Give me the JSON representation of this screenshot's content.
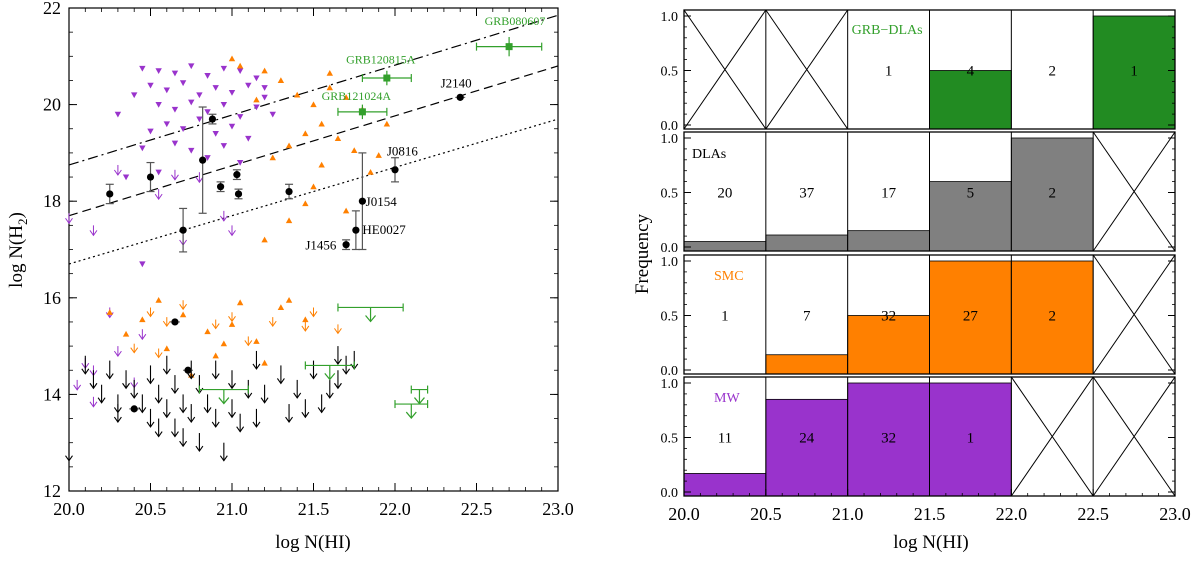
{
  "chart_data": [
    {
      "type": "scatter",
      "xlabel": "log N(HI)",
      "ylabel_main": "log N(H",
      "ylabel_sub": "2",
      "ylabel_close": ")",
      "xlim": [
        20.0,
        23.0
      ],
      "ylim": [
        12,
        22
      ],
      "xticks": [
        "20.0",
        "20.5",
        "21.0",
        "21.5",
        "22.0",
        "22.5",
        "23.0"
      ],
      "xtick_values": [
        20.0,
        20.5,
        21.0,
        21.5,
        22.0,
        22.5,
        23.0
      ],
      "yticks": [
        "12",
        "14",
        "16",
        "18",
        "20",
        "22"
      ],
      "ytick_values": [
        12,
        14,
        16,
        18,
        20,
        22
      ],
      "colors": {
        "mw": "#9933cc",
        "smc": "#ff8000",
        "grb": "#33a02c",
        "qso": "#000000"
      },
      "guide_lines": [
        {
          "name": "dash-dot",
          "style": "dashdot",
          "x": [
            20.0,
            23.0
          ],
          "y": [
            18.75,
            21.85
          ]
        },
        {
          "name": "dashed",
          "style": "dashed",
          "x": [
            20.0,
            23.0
          ],
          "y": [
            17.7,
            20.8
          ]
        },
        {
          "name": "dotted",
          "style": "dotted",
          "x": [
            20.0,
            23.0
          ],
          "y": [
            16.7,
            19.7
          ]
        }
      ],
      "mw_detections": [
        [
          20.45,
          20.75
        ],
        [
          20.55,
          20.7
        ],
        [
          20.65,
          20.65
        ],
        [
          20.75,
          20.8
        ],
        [
          20.85,
          20.6
        ],
        [
          20.95,
          20.75
        ],
        [
          21.05,
          20.7
        ],
        [
          21.15,
          20.55
        ],
        [
          20.5,
          20.4
        ],
        [
          20.6,
          20.3
        ],
        [
          20.7,
          20.45
        ],
        [
          20.8,
          20.2
        ],
        [
          20.9,
          20.35
        ],
        [
          21.0,
          20.25
        ],
        [
          21.1,
          20.4
        ],
        [
          21.2,
          20.15
        ],
        [
          20.55,
          20.0
        ],
        [
          20.65,
          19.9
        ],
        [
          20.75,
          20.05
        ],
        [
          20.85,
          19.85
        ],
        [
          20.95,
          20.0
        ],
        [
          21.05,
          19.75
        ],
        [
          21.15,
          19.95
        ],
        [
          21.25,
          19.8
        ],
        [
          20.6,
          19.6
        ],
        [
          20.7,
          19.5
        ],
        [
          20.8,
          19.7
        ],
        [
          20.9,
          19.4
        ],
        [
          21.0,
          19.55
        ],
        [
          21.1,
          19.3
        ],
        [
          20.65,
          19.2
        ],
        [
          20.75,
          19.05
        ],
        [
          20.85,
          18.9
        ],
        [
          20.95,
          19.15
        ],
        [
          21.05,
          18.8
        ],
        [
          20.55,
          18.6
        ],
        [
          20.5,
          19.45
        ],
        [
          20.4,
          20.2
        ],
        [
          21.2,
          20.35
        ],
        [
          20.3,
          19.8
        ],
        [
          20.45,
          19.1
        ],
        [
          20.35,
          18.5
        ],
        [
          20.45,
          16.7
        ]
      ],
      "mw_upper_limits": [
        [
          20.0,
          17.75
        ],
        [
          20.15,
          17.5
        ],
        [
          20.3,
          18.75
        ],
        [
          20.65,
          18.65
        ],
        [
          20.7,
          17.3
        ],
        [
          20.8,
          18.6
        ],
        [
          20.95,
          17.8
        ],
        [
          21.0,
          17.5
        ],
        [
          20.55,
          18.25
        ],
        [
          20.1,
          14.75
        ],
        [
          20.45,
          15.35
        ],
        [
          20.25,
          15.8
        ],
        [
          20.4,
          14.35
        ],
        [
          20.15,
          14.6
        ],
        [
          20.3,
          15.0
        ],
        [
          20.15,
          13.95
        ],
        [
          20.05,
          14.3
        ]
      ],
      "smc_detections": [
        [
          21.2,
          20.7
        ],
        [
          21.3,
          20.5
        ],
        [
          21.4,
          20.2
        ],
        [
          21.5,
          20.0
        ],
        [
          21.6,
          20.35
        ],
        [
          21.7,
          20.15
        ],
        [
          21.8,
          19.9
        ],
        [
          21.55,
          19.6
        ],
        [
          21.45,
          19.4
        ],
        [
          21.65,
          19.3
        ],
        [
          21.35,
          19.15
        ],
        [
          21.75,
          19.05
        ],
        [
          21.25,
          18.9
        ],
        [
          21.55,
          18.75
        ],
        [
          21.85,
          18.6
        ],
        [
          21.5,
          18.3
        ],
        [
          21.45,
          17.95
        ],
        [
          21.7,
          17.8
        ],
        [
          21.35,
          17.6
        ],
        [
          21.2,
          17.2
        ],
        [
          21.15,
          20.1
        ],
        [
          21.05,
          20.8
        ],
        [
          21.0,
          20.95
        ],
        [
          21.9,
          18.95
        ],
        [
          21.95,
          19.6
        ],
        [
          21.6,
          20.65
        ],
        [
          20.25,
          15.7
        ],
        [
          20.45,
          15.55
        ],
        [
          20.55,
          15.95
        ],
        [
          20.7,
          15.65
        ],
        [
          20.85,
          15.3
        ],
        [
          21.0,
          15.45
        ],
        [
          21.15,
          15.1
        ],
        [
          21.3,
          15.8
        ],
        [
          21.45,
          15.55
        ],
        [
          20.6,
          14.95
        ],
        [
          20.9,
          14.8
        ],
        [
          21.2,
          14.65
        ],
        [
          20.75,
          14.4
        ],
        [
          21.35,
          15.95
        ],
        [
          20.35,
          15.25
        ],
        [
          21.05,
          15.9
        ],
        [
          20.95,
          15.05
        ]
      ],
      "smc_upper_limits": [
        [
          20.6,
          15.6
        ],
        [
          20.7,
          15.95
        ],
        [
          21.0,
          15.7
        ],
        [
          21.25,
          15.6
        ],
        [
          21.45,
          15.5
        ],
        [
          21.5,
          15.8
        ],
        [
          21.65,
          15.45
        ],
        [
          20.9,
          15.55
        ],
        [
          20.55,
          14.95
        ],
        [
          21.1,
          15.2
        ],
        [
          20.4,
          15.05
        ],
        [
          20.5,
          15.8
        ]
      ],
      "qso_detections": [
        {
          "x": 20.25,
          "y": 18.15,
          "yerr": 0.2
        },
        {
          "x": 20.5,
          "y": 18.5,
          "yerr": 0.3
        },
        {
          "x": 20.7,
          "y": 17.4,
          "yerr": 0.45
        },
        {
          "x": 20.82,
          "y": 18.85,
          "yerr": 1.1
        },
        {
          "x": 20.88,
          "y": 19.7,
          "yerr": 0.1
        },
        {
          "x": 20.93,
          "y": 18.3,
          "yerr": 0.1
        },
        {
          "x": 21.03,
          "y": 18.55,
          "yerr": 0.1
        },
        {
          "x": 21.04,
          "y": 18.15,
          "yerr": 0.1
        },
        {
          "x": 21.35,
          "y": 18.2,
          "yerr": 0.15
        },
        {
          "x": 21.7,
          "y": 17.1,
          "yerr": 0.1
        },
        {
          "x": 21.76,
          "y": 17.4,
          "yerr": 0.4
        },
        {
          "x": 21.8,
          "y": 18.0,
          "yerr": 1.0
        },
        {
          "x": 22.0,
          "y": 18.65,
          "yerr": 0.25
        },
        {
          "x": 22.4,
          "y": 20.15,
          "yerr": 0.05
        },
        {
          "x": 20.4,
          "y": 13.7,
          "yerr": 0.05
        },
        {
          "x": 20.65,
          "y": 15.5,
          "yerr": 0.05
        },
        {
          "x": 20.73,
          "y": 14.5,
          "yerr": 0.05
        }
      ],
      "qso_labels": [
        {
          "text": "J2140",
          "x": 22.28,
          "y": 20.35
        },
        {
          "text": "J0816",
          "x": 21.95,
          "y": 18.95
        },
        {
          "text": "J0154",
          "x": 21.82,
          "y": 17.9
        },
        {
          "text": "HE0027",
          "x": 21.8,
          "y": 17.32
        },
        {
          "text": "J1456",
          "x": 21.45,
          "y": 17.0
        }
      ],
      "qso_upper_limits": [
        [
          20.0,
          13.0
        ],
        [
          20.1,
          14.8
        ],
        [
          20.15,
          14.5
        ],
        [
          20.2,
          14.2
        ],
        [
          20.25,
          14.7
        ],
        [
          20.3,
          14.0
        ],
        [
          20.3,
          13.8
        ],
        [
          20.35,
          14.5
        ],
        [
          20.4,
          14.3
        ],
        [
          20.45,
          14.0
        ],
        [
          20.5,
          13.7
        ],
        [
          20.5,
          14.6
        ],
        [
          20.55,
          14.2
        ],
        [
          20.55,
          13.5
        ],
        [
          20.6,
          14.8
        ],
        [
          20.6,
          13.9
        ],
        [
          20.65,
          14.4
        ],
        [
          20.65,
          13.5
        ],
        [
          20.7,
          14.0
        ],
        [
          20.7,
          13.3
        ],
        [
          20.75,
          14.7
        ],
        [
          20.75,
          13.8
        ],
        [
          20.8,
          14.4
        ],
        [
          20.8,
          13.2
        ],
        [
          20.85,
          14.0
        ],
        [
          20.9,
          14.7
        ],
        [
          20.9,
          13.7
        ],
        [
          20.95,
          13.0
        ],
        [
          21.0,
          14.5
        ],
        [
          21.0,
          13.9
        ],
        [
          21.05,
          13.6
        ],
        [
          21.1,
          14.3
        ],
        [
          21.15,
          14.9
        ],
        [
          21.15,
          13.7
        ],
        [
          21.2,
          14.2
        ],
        [
          21.3,
          14.6
        ],
        [
          21.35,
          13.8
        ],
        [
          21.4,
          14.3
        ],
        [
          21.45,
          13.9
        ],
        [
          21.5,
          14.7
        ],
        [
          21.55,
          14.0
        ],
        [
          21.6,
          14.3
        ],
        [
          21.65,
          15.0
        ],
        [
          21.65,
          14.5
        ],
        [
          21.7,
          14.8
        ],
        [
          21.75,
          14.9
        ]
      ],
      "grb_detections": [
        {
          "label": "GRB080607",
          "x": 22.7,
          "y": 21.2,
          "xerr": 0.2,
          "yerr": 0.2,
          "lx": 22.55,
          "ly": 21.65
        },
        {
          "label": "GRB120815A",
          "x": 21.95,
          "y": 20.55,
          "xerr": 0.15,
          "yerr": 0.15,
          "lx": 21.7,
          "ly": 20.85
        },
        {
          "label": "GRB121024A",
          "x": 21.8,
          "y": 19.85,
          "xerr": 0.15,
          "yerr": 0.15,
          "lx": 21.55,
          "ly": 20.1
        }
      ],
      "grb_upper_limits": [
        {
          "x": 21.85,
          "y": 15.8,
          "xerr": 0.2
        },
        {
          "x": 21.6,
          "y": 14.6,
          "xerr": 0.15
        },
        {
          "x": 20.95,
          "y": 14.1,
          "xerr": 0.15
        },
        {
          "x": 22.1,
          "y": 13.8,
          "xerr": 0.1
        },
        {
          "x": 22.15,
          "y": 14.1,
          "xerr": 0.05
        }
      ]
    },
    {
      "type": "bar",
      "ylabel": "Frequency",
      "xlabel": "log N(HI)",
      "xticks": [
        "20.0",
        "20.5",
        "21.0",
        "21.5",
        "22.0",
        "22.5",
        "23.0"
      ],
      "xtick_values": [
        20.0,
        20.5,
        21.0,
        21.5,
        22.0,
        22.5,
        23.0
      ],
      "ytick_labels": [
        "0.0",
        "0.5",
        "1.0"
      ],
      "ytick_values": [
        0.0,
        0.5,
        1.0
      ],
      "bin_edges": [
        20.0,
        20.5,
        21.0,
        21.5,
        22.0,
        22.5,
        23.0
      ],
      "panels": [
        {
          "name": "GRB-DLAs",
          "label": "GRB−DLAs",
          "color": "#228b22",
          "label_color": "#33a02c",
          "counts": [
            "",
            "",
            "1",
            "4",
            "2",
            "1"
          ],
          "empty": [
            true,
            true,
            false,
            false,
            false,
            false
          ],
          "values": [
            0,
            0,
            0,
            0.5,
            0,
            1.0
          ]
        },
        {
          "name": "DLAs",
          "label": "DLAs",
          "color": "#808080",
          "label_color": "#000000",
          "counts": [
            "20",
            "37",
            "17",
            "5",
            "2",
            ""
          ],
          "empty": [
            false,
            false,
            false,
            false,
            false,
            true
          ],
          "values": [
            0.05,
            0.11,
            0.15,
            0.6,
            1.0,
            0
          ]
        },
        {
          "name": "SMC",
          "label": "SMC",
          "color": "#ff8000",
          "label_color": "#ff8000",
          "counts": [
            "1",
            "7",
            "32",
            "27",
            "2",
            ""
          ],
          "empty": [
            false,
            false,
            false,
            false,
            false,
            true
          ],
          "values": [
            0,
            0.14,
            0.5,
            1.0,
            1.0,
            0
          ]
        },
        {
          "name": "MW",
          "label": "MW",
          "color": "#9933cc",
          "label_color": "#9933cc",
          "counts": [
            "11",
            "24",
            "32",
            "1",
            "",
            ""
          ],
          "empty": [
            false,
            false,
            false,
            false,
            true,
            true
          ],
          "values": [
            0.17,
            0.85,
            1.0,
            1.0,
            0,
            0
          ]
        }
      ]
    }
  ]
}
